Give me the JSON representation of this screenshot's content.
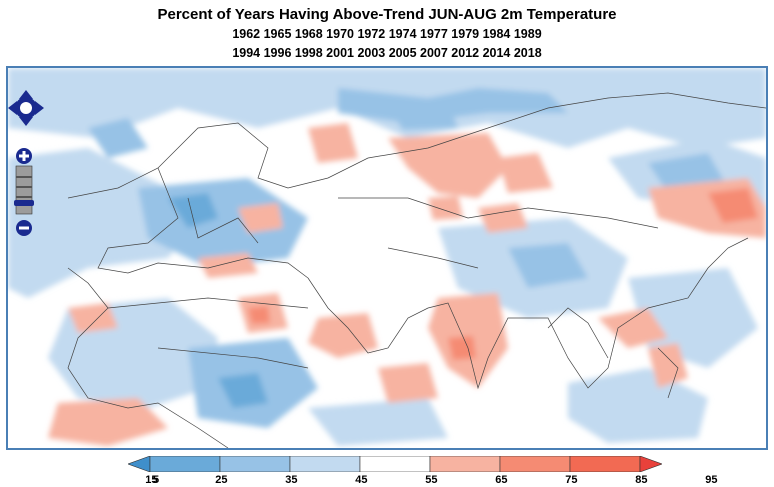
{
  "title": "Percent of Years Having Above-Trend JUN-AUG 2m Temperature",
  "years_line1": "1962 1965 1968 1970 1972 1974 1977 1979 1984 1989",
  "years_line2": "1994 1996 1998 2001 2003 2005 2007 2012 2014 2018",
  "icons": {
    "pan": "pan-arrows-icon",
    "zoom_in": "zoom-in-icon",
    "zoom_out": "zoom-out-icon",
    "zoom_slider": "zoom-slider-icon"
  },
  "legend": {
    "ticks": [
      "5",
      "15",
      "25",
      "35",
      "45",
      "55",
      "65",
      "75",
      "85",
      "95"
    ],
    "colors": [
      "#3f8fcb",
      "#6aaad9",
      "#97c2e6",
      "#c2daf0",
      "#ffffff",
      "#f7b3a1",
      "#f58b73",
      "#f26a53",
      "#e8413b"
    ]
  }
}
